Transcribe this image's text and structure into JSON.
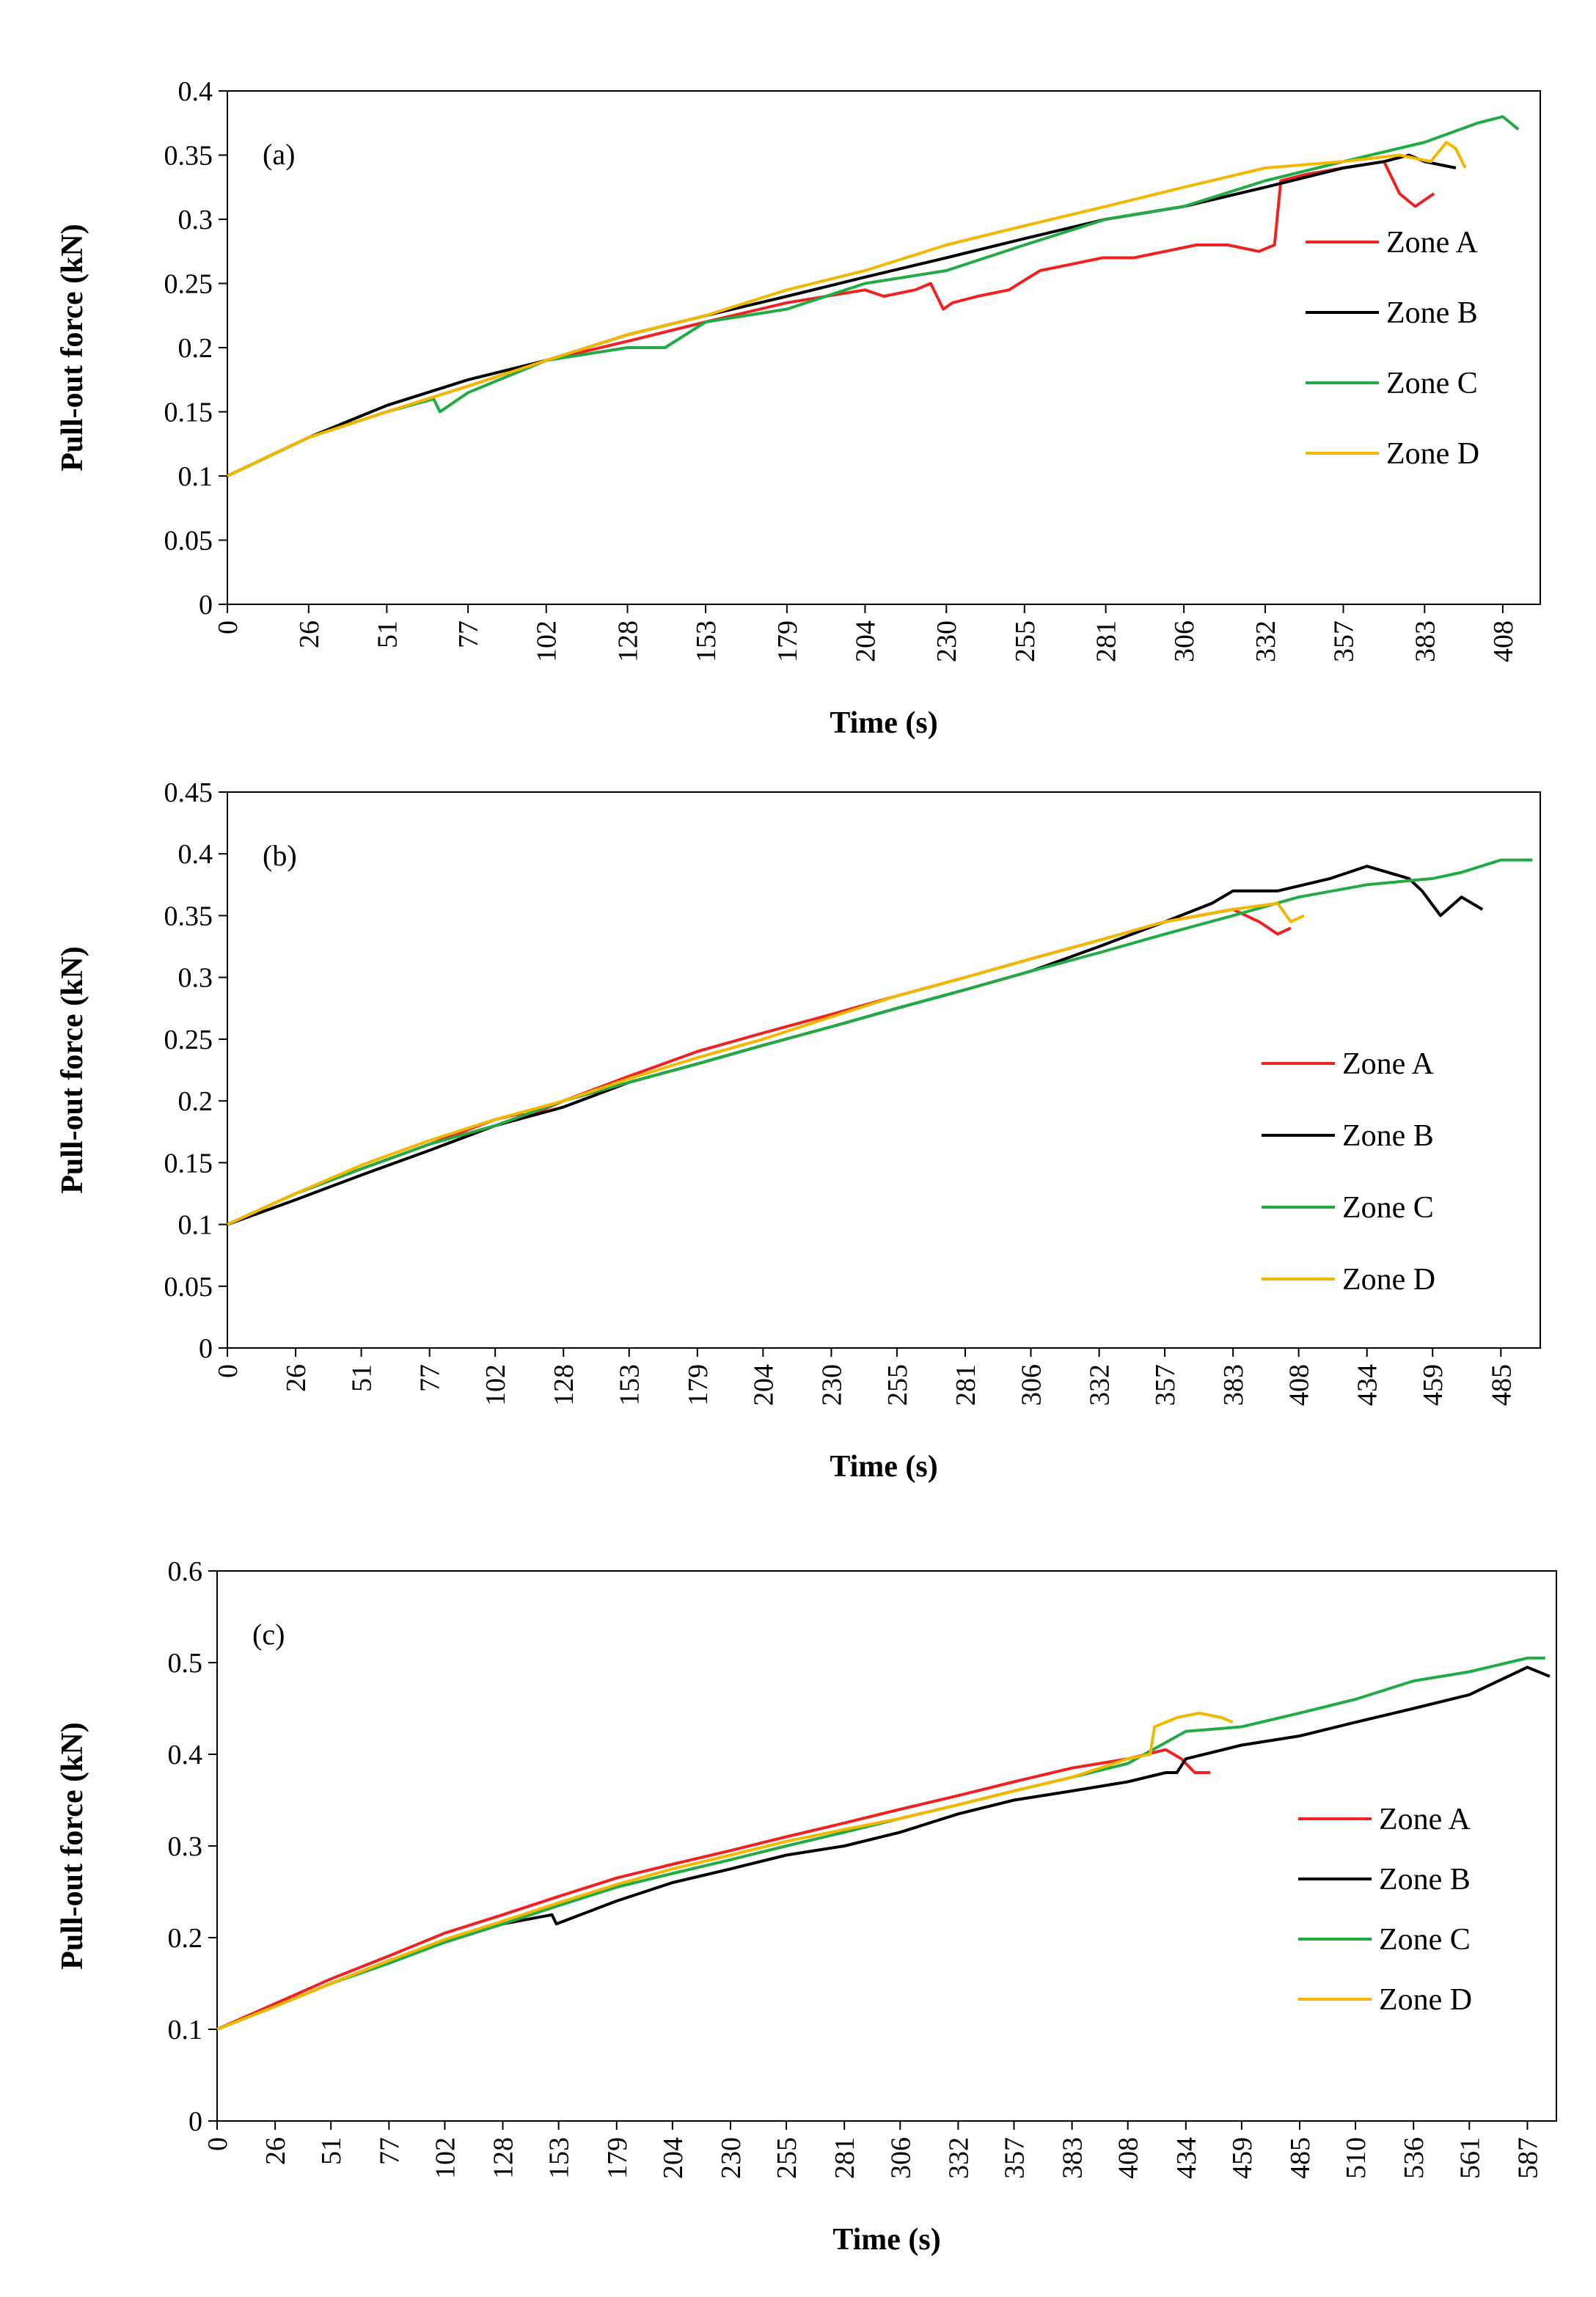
{
  "chart_data": [
    {
      "type": "line",
      "panel_label": "(a)",
      "xlabel": "Time (s)",
      "ylabel": "Pull-out force (kN)",
      "xlim": [
        0,
        420
      ],
      "ylim": [
        0,
        0.4
      ],
      "x_ticks": [
        "0",
        "26",
        "51",
        "77",
        "102",
        "128",
        "153",
        "179",
        "204",
        "230",
        "255",
        "281",
        "306",
        "332",
        "357",
        "383",
        "408"
      ],
      "y_ticks": [
        "0",
        "0.05",
        "0.1",
        "0.15",
        "0.2",
        "0.25",
        "0.3",
        "0.35",
        "0.4"
      ],
      "legend_position": "right",
      "series": [
        {
          "name": "Zone A",
          "color": "#ee2222",
          "x": [
            0,
            26,
            51,
            77,
            102,
            128,
            153,
            179,
            204,
            210,
            220,
            225,
            229,
            232,
            240,
            250,
            260,
            270,
            280,
            290,
            300,
            310,
            320,
            330,
            335,
            337,
            345,
            357,
            370,
            375,
            380,
            386
          ],
          "y": [
            0.1,
            0.13,
            0.15,
            0.17,
            0.19,
            0.205,
            0.22,
            0.235,
            0.245,
            0.24,
            0.245,
            0.25,
            0.23,
            0.235,
            0.24,
            0.245,
            0.26,
            0.265,
            0.27,
            0.27,
            0.275,
            0.28,
            0.28,
            0.275,
            0.28,
            0.33,
            0.335,
            0.34,
            0.345,
            0.32,
            0.31,
            0.32
          ]
        },
        {
          "name": "Zone B",
          "color": "#000000",
          "x": [
            0,
            26,
            51,
            77,
            102,
            128,
            153,
            179,
            204,
            230,
            255,
            281,
            306,
            332,
            357,
            370,
            378,
            383,
            393
          ],
          "y": [
            0.1,
            0.13,
            0.155,
            0.175,
            0.19,
            0.21,
            0.225,
            0.24,
            0.255,
            0.27,
            0.285,
            0.3,
            0.31,
            0.325,
            0.34,
            0.345,
            0.35,
            0.345,
            0.34
          ]
        },
        {
          "name": "Zone C",
          "color": "#22aa44",
          "x": [
            0,
            26,
            51,
            66,
            68,
            77,
            102,
            128,
            140,
            153,
            179,
            204,
            230,
            255,
            281,
            306,
            332,
            357,
            383,
            400,
            408,
            413
          ],
          "y": [
            0.1,
            0.13,
            0.15,
            0.16,
            0.15,
            0.165,
            0.19,
            0.2,
            0.2,
            0.22,
            0.23,
            0.25,
            0.26,
            0.28,
            0.3,
            0.31,
            0.33,
            0.345,
            0.36,
            0.375,
            0.38,
            0.37
          ]
        },
        {
          "name": "Zone D",
          "color": "#f2b800",
          "x": [
            0,
            26,
            51,
            77,
            102,
            128,
            153,
            179,
            204,
            230,
            255,
            281,
            306,
            332,
            357,
            375,
            385,
            390,
            393,
            396
          ],
          "y": [
            0.1,
            0.13,
            0.15,
            0.17,
            0.19,
            0.21,
            0.225,
            0.245,
            0.26,
            0.28,
            0.295,
            0.31,
            0.325,
            0.34,
            0.345,
            0.35,
            0.345,
            0.36,
            0.355,
            0.34
          ]
        }
      ]
    },
    {
      "type": "line",
      "panel_label": "(b)",
      "xlabel": "Time (s)",
      "ylabel": "Pull-out force (kN)",
      "xlim": [
        0,
        500
      ],
      "ylim": [
        0,
        0.45
      ],
      "x_ticks": [
        "0",
        "26",
        "51",
        "77",
        "102",
        "128",
        "153",
        "179",
        "204",
        "230",
        "255",
        "281",
        "306",
        "332",
        "357",
        "383",
        "408",
        "434",
        "459",
        "485"
      ],
      "y_ticks": [
        "0",
        "0.05",
        "0.1",
        "0.15",
        "0.2",
        "0.25",
        "0.3",
        "0.35",
        "0.4",
        "0.45"
      ],
      "legend_position": "right",
      "series": [
        {
          "name": "Zone A",
          "color": "#ee2222",
          "x": [
            0,
            26,
            51,
            77,
            102,
            112,
            114,
            128,
            153,
            179,
            204,
            230,
            255,
            281,
            306,
            332,
            357,
            383,
            393,
            400,
            405
          ],
          "y": [
            0.1,
            0.125,
            0.145,
            0.165,
            0.185,
            0.19,
            0.187,
            0.2,
            0.22,
            0.24,
            0.255,
            0.27,
            0.285,
            0.3,
            0.315,
            0.33,
            0.345,
            0.355,
            0.345,
            0.335,
            0.34
          ]
        },
        {
          "name": "Zone B",
          "color": "#000000",
          "x": [
            0,
            26,
            51,
            77,
            102,
            128,
            153,
            179,
            204,
            230,
            255,
            281,
            306,
            332,
            357,
            375,
            383,
            400,
            420,
            434,
            450,
            455,
            462,
            470,
            478
          ],
          "y": [
            0.1,
            0.12,
            0.14,
            0.16,
            0.18,
            0.195,
            0.215,
            0.23,
            0.245,
            0.26,
            0.275,
            0.29,
            0.305,
            0.325,
            0.345,
            0.36,
            0.37,
            0.37,
            0.38,
            0.39,
            0.38,
            0.37,
            0.35,
            0.365,
            0.355
          ]
        },
        {
          "name": "Zone C",
          "color": "#22aa44",
          "x": [
            0,
            26,
            51,
            77,
            102,
            128,
            153,
            179,
            204,
            230,
            255,
            281,
            306,
            332,
            357,
            383,
            408,
            434,
            459,
            470,
            485,
            497
          ],
          "y": [
            0.1,
            0.125,
            0.145,
            0.165,
            0.18,
            0.2,
            0.215,
            0.23,
            0.245,
            0.26,
            0.275,
            0.29,
            0.305,
            0.32,
            0.335,
            0.35,
            0.365,
            0.375,
            0.38,
            0.385,
            0.395,
            0.395
          ]
        },
        {
          "name": "Zone D",
          "color": "#f2b800",
          "x": [
            0,
            26,
            51,
            77,
            102,
            128,
            153,
            179,
            204,
            230,
            255,
            281,
            306,
            332,
            357,
            383,
            400,
            405,
            410
          ],
          "y": [
            0.1,
            0.125,
            0.148,
            0.168,
            0.185,
            0.2,
            0.218,
            0.235,
            0.25,
            0.268,
            0.285,
            0.3,
            0.315,
            0.33,
            0.345,
            0.355,
            0.36,
            0.345,
            0.35
          ]
        }
      ]
    },
    {
      "type": "line",
      "panel_label": "(c)",
      "xlabel": "Time (s)",
      "ylabel": "Pull-out force (kN)",
      "xlim": [
        0,
        600
      ],
      "ylim": [
        0,
        0.6
      ],
      "x_ticks": [
        "0",
        "26",
        "51",
        "77",
        "102",
        "128",
        "153",
        "179",
        "204",
        "230",
        "255",
        "281",
        "306",
        "332",
        "357",
        "383",
        "408",
        "434",
        "459",
        "485",
        "510",
        "536",
        "561",
        "587"
      ],
      "y_ticks": [
        "0",
        "0.1",
        "0.2",
        "0.3",
        "0.4",
        "0.5",
        "0.6"
      ],
      "legend_position": "right",
      "series": [
        {
          "name": "Zone A",
          "color": "#ee2222",
          "x": [
            0,
            26,
            51,
            77,
            102,
            128,
            153,
            179,
            204,
            230,
            255,
            281,
            306,
            332,
            357,
            383,
            408,
            425,
            432,
            438,
            445
          ],
          "y": [
            0.1,
            0.128,
            0.155,
            0.18,
            0.205,
            0.225,
            0.245,
            0.265,
            0.28,
            0.295,
            0.31,
            0.325,
            0.34,
            0.355,
            0.37,
            0.385,
            0.395,
            0.405,
            0.395,
            0.38,
            0.38
          ]
        },
        {
          "name": "Zone B",
          "color": "#000000",
          "x": [
            0,
            26,
            51,
            77,
            102,
            128,
            150,
            152,
            179,
            204,
            230,
            255,
            281,
            306,
            332,
            357,
            383,
            408,
            425,
            430,
            434,
            459,
            485,
            510,
            536,
            561,
            587,
            597
          ],
          "y": [
            0.1,
            0.125,
            0.15,
            0.175,
            0.195,
            0.215,
            0.225,
            0.215,
            0.24,
            0.26,
            0.275,
            0.29,
            0.3,
            0.315,
            0.335,
            0.35,
            0.36,
            0.37,
            0.38,
            0.38,
            0.395,
            0.41,
            0.42,
            0.435,
            0.45,
            0.465,
            0.495,
            0.485
          ]
        },
        {
          "name": "Zone C",
          "color": "#22aa44",
          "x": [
            0,
            26,
            51,
            77,
            102,
            128,
            153,
            179,
            204,
            230,
            255,
            281,
            306,
            332,
            357,
            383,
            408,
            434,
            459,
            485,
            510,
            536,
            561,
            587,
            595
          ],
          "y": [
            0.1,
            0.125,
            0.15,
            0.172,
            0.195,
            0.215,
            0.235,
            0.255,
            0.27,
            0.285,
            0.3,
            0.315,
            0.33,
            0.345,
            0.36,
            0.375,
            0.39,
            0.425,
            0.43,
            0.445,
            0.46,
            0.48,
            0.49,
            0.505,
            0.505
          ]
        },
        {
          "name": "Zone D",
          "color": "#f2b800",
          "x": [
            0,
            26,
            51,
            77,
            102,
            128,
            153,
            179,
            204,
            230,
            255,
            281,
            306,
            332,
            357,
            383,
            408,
            418,
            420,
            430,
            440,
            450,
            455
          ],
          "y": [
            0.1,
            0.125,
            0.15,
            0.175,
            0.198,
            0.218,
            0.238,
            0.258,
            0.275,
            0.29,
            0.305,
            0.318,
            0.33,
            0.345,
            0.36,
            0.375,
            0.395,
            0.4,
            0.43,
            0.44,
            0.445,
            0.44,
            0.435
          ]
        }
      ]
    }
  ]
}
